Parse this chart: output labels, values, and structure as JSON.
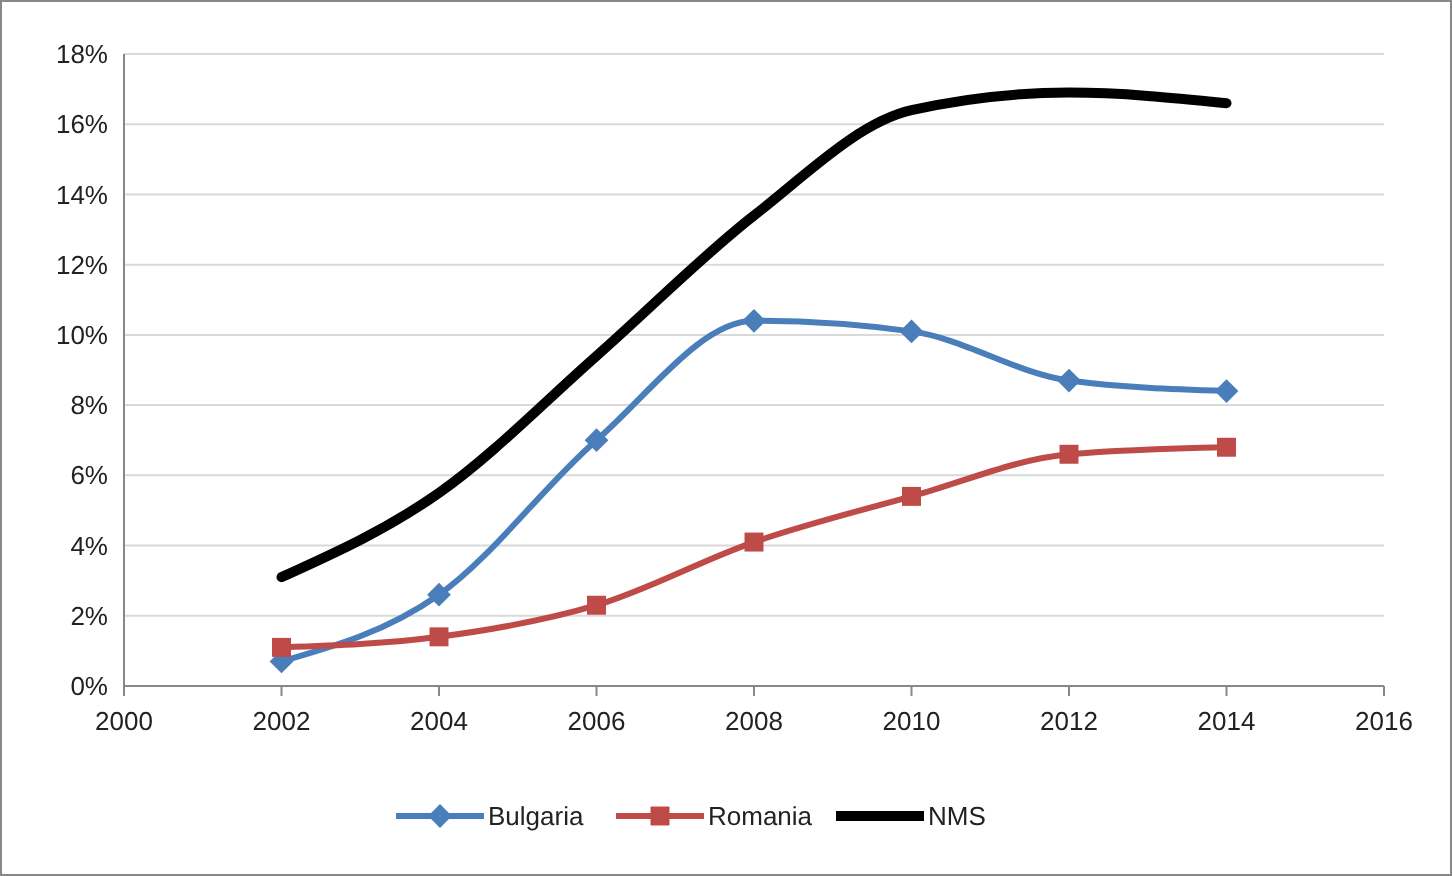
{
  "chart_data": {
    "type": "line",
    "x": [
      2002,
      2004,
      2006,
      2008,
      2010,
      2012,
      2014
    ],
    "series": [
      {
        "name": "Bulgaria",
        "color": "#4a7ebb",
        "marker": "diamond",
        "values": [
          0.7,
          2.6,
          7.0,
          10.4,
          10.1,
          8.7,
          8.4
        ]
      },
      {
        "name": "Romania",
        "color": "#be4b48",
        "marker": "square",
        "values": [
          1.1,
          1.4,
          2.3,
          4.1,
          5.4,
          6.6,
          6.8
        ]
      },
      {
        "name": "NMS",
        "color": "#000000",
        "marker": "none",
        "values": [
          3.1,
          5.5,
          9.4,
          13.4,
          16.4,
          16.9,
          16.6
        ]
      }
    ],
    "xlim": [
      2000,
      2016
    ],
    "xticks": [
      2000,
      2002,
      2004,
      2006,
      2008,
      2010,
      2012,
      2014,
      2016
    ],
    "ylim": [
      0,
      18
    ],
    "yticks": [
      {
        "value": 0,
        "label": "0%"
      },
      {
        "value": 2,
        "label": "2%"
      },
      {
        "value": 4,
        "label": "4%"
      },
      {
        "value": 6,
        "label": "6%"
      },
      {
        "value": 8,
        "label": "8%"
      },
      {
        "value": 10,
        "label": "10%"
      },
      {
        "value": 12,
        "label": "12%"
      },
      {
        "value": 14,
        "label": "14%"
      },
      {
        "value": 16,
        "label": "16%"
      },
      {
        "value": 18,
        "label": "18%"
      }
    ],
    "grid": "y",
    "legend": "bottom",
    "line_style": "solid"
  }
}
